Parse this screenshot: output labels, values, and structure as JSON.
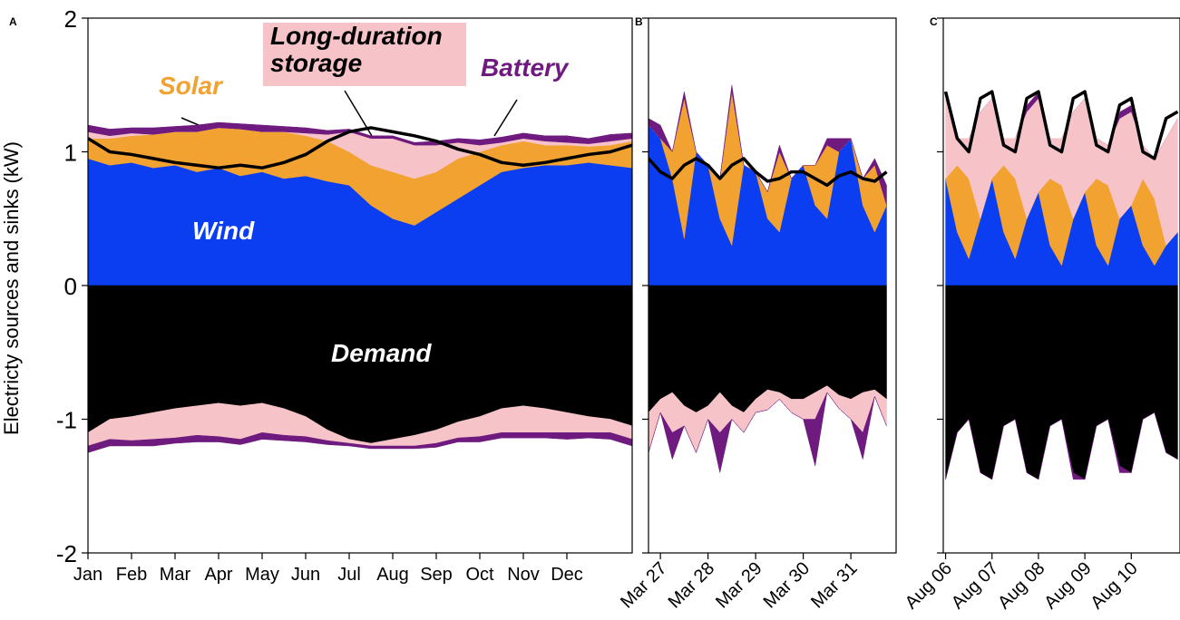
{
  "chart_data": [
    {
      "type": "stacked-area",
      "panel": "A",
      "ylabel": "Electricty sources and sinks (kW)",
      "xlim": [
        0,
        12.5
      ],
      "xticks": [
        {
          "value": 0,
          "label": "Jan"
        },
        {
          "value": 1,
          "label": "Feb"
        },
        {
          "value": 2,
          "label": "Mar"
        },
        {
          "value": 3,
          "label": "Apr"
        },
        {
          "value": 4,
          "label": "May"
        },
        {
          "value": 5,
          "label": "Jun"
        },
        {
          "value": 6,
          "label": "Jul"
        },
        {
          "value": 7,
          "label": "Aug"
        },
        {
          "value": 8,
          "label": "Sep"
        },
        {
          "value": 9,
          "label": "Oct"
        },
        {
          "value": 10,
          "label": "Nov"
        },
        {
          "value": 11,
          "label": "Dec"
        }
      ],
      "ylim": [
        -2,
        2
      ],
      "yticks": [
        2,
        1,
        0,
        -1,
        -2
      ],
      "x": [
        0,
        0.5,
        1,
        1.5,
        2,
        2.5,
        3,
        3.5,
        4,
        4.5,
        5,
        5.5,
        6,
        6.5,
        7,
        7.5,
        8,
        8.5,
        9,
        9.5,
        10,
        10.5,
        11,
        11.5,
        12,
        12.5
      ],
      "series": [
        {
          "name": "Wind",
          "color": "#0a3ef0",
          "values": [
            0.95,
            0.9,
            0.92,
            0.88,
            0.9,
            0.85,
            0.88,
            0.82,
            0.85,
            0.8,
            0.82,
            0.78,
            0.75,
            0.6,
            0.5,
            0.45,
            0.55,
            0.65,
            0.75,
            0.85,
            0.88,
            0.9,
            0.9,
            0.92,
            0.9,
            0.88
          ]
        },
        {
          "name": "Solar",
          "color": "#f2a230",
          "values": [
            0.15,
            0.2,
            0.2,
            0.25,
            0.25,
            0.3,
            0.3,
            0.35,
            0.3,
            0.35,
            0.3,
            0.3,
            0.25,
            0.3,
            0.35,
            0.35,
            0.3,
            0.3,
            0.25,
            0.2,
            0.2,
            0.15,
            0.15,
            0.12,
            0.15,
            0.2
          ]
        },
        {
          "name": "Long-duration storage",
          "color": "#f6c3c9",
          "values": [
            0.05,
            0.02,
            0.02,
            0,
            0,
            0,
            0,
            0,
            0,
            0,
            0.02,
            0.05,
            0.15,
            0.2,
            0.25,
            0.25,
            0.2,
            0.12,
            0.05,
            0.02,
            0.02,
            0.03,
            0.02,
            0.02,
            0.03,
            0.02
          ]
        },
        {
          "name": "Battery",
          "color": "#6e1a7e",
          "values": [
            0.05,
            0.05,
            0.04,
            0.05,
            0.04,
            0.05,
            0.04,
            0.04,
            0.05,
            0.04,
            0.04,
            0.03,
            0.02,
            0.02,
            0.02,
            0.02,
            0.03,
            0.03,
            0.04,
            0.04,
            0.04,
            0.04,
            0.05,
            0.04,
            0.05,
            0.04
          ]
        },
        {
          "name": "Demand",
          "color": "#000000",
          "values": [
            -1.1,
            -1.0,
            -0.98,
            -0.95,
            -0.92,
            -0.9,
            -0.88,
            -0.9,
            -0.88,
            -0.92,
            -0.98,
            -1.08,
            -1.15,
            -1.18,
            -1.15,
            -1.12,
            -1.08,
            -1.02,
            -0.98,
            -0.92,
            -0.9,
            -0.92,
            -0.95,
            -0.98,
            -1.0,
            -1.05
          ]
        },
        {
          "color": "#f6c3c9",
          "values": [
            -0.1,
            -0.15,
            -0.18,
            -0.2,
            -0.22,
            -0.22,
            -0.25,
            -0.25,
            -0.22,
            -0.2,
            -0.15,
            -0.08,
            -0.03,
            -0.02,
            -0.05,
            -0.08,
            -0.1,
            -0.12,
            -0.15,
            -0.18,
            -0.2,
            -0.18,
            -0.15,
            -0.12,
            -0.1,
            -0.1
          ]
        },
        {
          "color": "#6e1a7e",
          "values": [
            -0.05,
            -0.05,
            -0.04,
            -0.05,
            -0.04,
            -0.05,
            -0.04,
            -0.04,
            -0.05,
            -0.04,
            -0.04,
            -0.03,
            -0.02,
            -0.02,
            -0.02,
            -0.02,
            -0.03,
            -0.03,
            -0.04,
            -0.04,
            -0.04,
            -0.04,
            -0.05,
            -0.04,
            -0.05,
            -0.05
          ]
        }
      ],
      "line": {
        "color": "#000000",
        "values": [
          1.1,
          1.0,
          0.98,
          0.95,
          0.92,
          0.9,
          0.88,
          0.9,
          0.88,
          0.92,
          0.98,
          1.08,
          1.15,
          1.18,
          1.15,
          1.12,
          1.08,
          1.02,
          0.98,
          0.92,
          0.9,
          0.92,
          0.95,
          0.98,
          1.0,
          1.05
        ]
      }
    },
    {
      "type": "stacked-area",
      "panel": "B",
      "xlim": [
        -0.25,
        4.95
      ],
      "xticks": [
        {
          "value": 0,
          "label": "Mar 27"
        },
        {
          "value": 1,
          "label": "Mar 28"
        },
        {
          "value": 2,
          "label": "Mar 29"
        },
        {
          "value": 3,
          "label": "Mar 30"
        },
        {
          "value": 4,
          "label": "Mar 31"
        }
      ],
      "ylim": [
        -2,
        2
      ],
      "yticks": [
        2,
        1,
        0,
        -1,
        -2
      ],
      "x": [
        -0.25,
        0,
        0.25,
        0.5,
        0.75,
        1,
        1.25,
        1.5,
        1.75,
        2,
        2.25,
        2.5,
        2.75,
        3,
        3.25,
        3.5,
        3.75,
        4,
        4.25,
        4.5,
        4.75
      ],
      "series": [
        {
          "color": "#0a3ef0",
          "values": [
            1.2,
            1.1,
            0.8,
            0.35,
            1.0,
            0.9,
            0.5,
            0.3,
            0.9,
            0.85,
            0.5,
            0.4,
            0.8,
            0.9,
            0.6,
            0.5,
            1.0,
            1.1,
            0.6,
            0.4,
            0.6
          ]
        },
        {
          "color": "#f2a230",
          "values": [
            0,
            0,
            0.2,
            1.05,
            0,
            0,
            0.3,
            1.15,
            0,
            0,
            0.2,
            0.6,
            0,
            0,
            0.3,
            0.55,
            0,
            0,
            0.2,
            0.5,
            0
          ]
        },
        {
          "color": "#f6c3c9",
          "values": [
            0,
            0,
            0,
            0,
            0,
            0,
            0,
            0,
            0,
            0,
            0,
            0,
            0,
            0,
            0,
            0,
            0,
            0,
            0,
            0,
            0
          ]
        },
        {
          "color": "#6e1a7e",
          "values": [
            0.05,
            0.1,
            0,
            0.05,
            0,
            0,
            0,
            0.05,
            0,
            0,
            0,
            0.05,
            0,
            0,
            0,
            0.05,
            0.1,
            0,
            0,
            0.05,
            0.15
          ]
        },
        {
          "color": "#000000",
          "values": [
            -0.95,
            -0.85,
            -0.8,
            -0.9,
            -0.95,
            -0.9,
            -0.8,
            -0.9,
            -0.95,
            -0.85,
            -0.78,
            -0.8,
            -0.85,
            -0.85,
            -0.8,
            -0.75,
            -0.82,
            -0.85,
            -0.8,
            -0.78,
            -0.85
          ]
        },
        {
          "color": "#f6c3c9",
          "values": [
            -0.3,
            -0.1,
            -0.3,
            -0.15,
            -0.3,
            -0.1,
            -0.3,
            -0.1,
            -0.15,
            -0.1,
            -0.15,
            -0.05,
            -0.1,
            -0.15,
            -0.2,
            -0.05,
            -0.1,
            -0.15,
            -0.3,
            -0.05,
            -0.2
          ]
        },
        {
          "color": "#6e1a7e",
          "values": [
            0,
            0,
            -0.2,
            0,
            0,
            0,
            -0.3,
            0,
            0,
            0,
            0,
            0,
            0,
            0,
            -0.35,
            0,
            0,
            0,
            -0.2,
            0,
            0
          ]
        }
      ],
      "line": {
        "color": "#000000",
        "values": [
          0.95,
          0.85,
          0.8,
          0.9,
          0.95,
          0.9,
          0.8,
          0.9,
          0.95,
          0.85,
          0.78,
          0.8,
          0.85,
          0.85,
          0.8,
          0.75,
          0.82,
          0.85,
          0.8,
          0.78,
          0.85
        ]
      }
    },
    {
      "type": "stacked-area",
      "panel": "C",
      "xlim": [
        -0.05,
        5.05
      ],
      "xticks": [
        {
          "value": 0,
          "label": "Aug 06"
        },
        {
          "value": 1,
          "label": "Aug 07"
        },
        {
          "value": 2,
          "label": "Aug 08"
        },
        {
          "value": 3,
          "label": "Aug 09"
        },
        {
          "value": 4,
          "label": "Aug 10"
        }
      ],
      "ylim": [
        -2,
        2
      ],
      "yticks": [
        2,
        1,
        0,
        -1,
        -2
      ],
      "x": [
        0,
        0.25,
        0.5,
        0.75,
        1,
        1.25,
        1.5,
        1.75,
        2,
        2.25,
        2.5,
        2.75,
        3,
        3.25,
        3.5,
        3.75,
        4,
        4.25,
        4.5,
        4.75,
        5
      ],
      "series": [
        {
          "color": "#0a3ef0",
          "values": [
            0.8,
            0.4,
            0.2,
            0.5,
            0.8,
            0.4,
            0.2,
            0.5,
            0.7,
            0.3,
            0.15,
            0.5,
            0.7,
            0.3,
            0.15,
            0.5,
            0.6,
            0.3,
            0.15,
            0.3,
            0.4
          ]
        },
        {
          "color": "#f2a230",
          "values": [
            0,
            0.5,
            0.6,
            0,
            0,
            0.5,
            0.6,
            0,
            0,
            0.5,
            0.6,
            0,
            0,
            0.5,
            0.6,
            0,
            0,
            0.5,
            0.5,
            0,
            0
          ]
        },
        {
          "color": "#f6c3c9",
          "values": [
            0.6,
            0.2,
            0.3,
            0.8,
            0.6,
            0.2,
            0.3,
            0.8,
            0.7,
            0.3,
            0.35,
            0.8,
            0.7,
            0.3,
            0.3,
            0.75,
            0.7,
            0.25,
            0.3,
            0.8,
            0.85
          ]
        },
        {
          "color": "#6e1a7e",
          "values": [
            0,
            0,
            0,
            0,
            0,
            0,
            0,
            0.05,
            0.05,
            0,
            0,
            0,
            0,
            0,
            0,
            0.05,
            0.05,
            0,
            0,
            0,
            0
          ]
        },
        {
          "color": "#000000",
          "values": [
            -1.45,
            -1.1,
            -1.0,
            -1.4,
            -1.45,
            -1.05,
            -1.0,
            -1.4,
            -1.45,
            -1.05,
            -1.0,
            -1.4,
            -1.45,
            -1.05,
            -1.0,
            -1.35,
            -1.4,
            -1.0,
            -0.95,
            -1.25,
            -1.3
          ]
        },
        {
          "color": "#f6c3c9",
          "values": [
            0,
            0,
            0,
            0,
            0,
            0,
            0,
            0,
            0,
            0,
            0,
            0,
            0,
            0,
            0,
            0,
            0,
            0,
            0,
            0,
            0
          ]
        },
        {
          "color": "#6e1a7e",
          "values": [
            0,
            0,
            0,
            0,
            0,
            0,
            0,
            0,
            0,
            0,
            0,
            -0.05,
            0,
            0,
            0,
            -0.05,
            0,
            0,
            0,
            0,
            0
          ]
        }
      ],
      "line": {
        "color": "#000000",
        "values": [
          1.45,
          1.1,
          1.0,
          1.4,
          1.45,
          1.05,
          1.0,
          1.4,
          1.45,
          1.05,
          1.0,
          1.4,
          1.45,
          1.05,
          1.0,
          1.35,
          1.4,
          1.0,
          0.95,
          1.25,
          1.3
        ]
      }
    }
  ]
}
